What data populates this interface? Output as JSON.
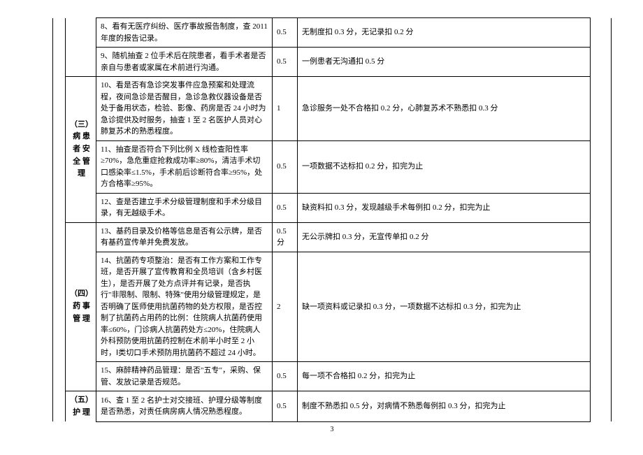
{
  "sections": {
    "s3": "（三）\n病 患\n者 安\n全 管\n理",
    "s4": "（四）\n药 事\n管 理",
    "s5": "（五）\n护 理"
  },
  "rows": [
    {
      "no": 8,
      "content": "8、看有无医疗纠纷、医疗事故报告制度，查 2011 年度的报告记录。",
      "score": "0.5",
      "criteria": "无制度扣 0.3 分，无记录扣 0.2 分"
    },
    {
      "no": 9,
      "content": "9、随机抽查 2 位手术后在院患者，看手术者是否亲自与患者或家属在术前进行沟通。",
      "score": "0.5",
      "criteria": "一例患者无沟通扣 0.5 分"
    },
    {
      "no": 10,
      "content": "10、看是否有急诊突发事件应急预案和处理流程，夜间急诊是否醒目，急诊急救仪器设备是否处于备用状态，检验、影像、药房是否 24 小时为急诊提供及时服务，抽查 1 至 2 名医护人员对心肺复苏术的熟悉程度。",
      "score": "1",
      "criteria": "急诊服务一处不合格扣 0.2 分，心肺复苏术不熟悉扣 0.3 分"
    },
    {
      "no": 11,
      "content": "11、抽查是否符合下列比例 X 线检查阳性率≥70%，急危重症抢救成功率≥80%，清洁手术切口感染率≤1.5%，手术前后诊断符合率≥95%，处方合格率≥95%。",
      "score": "0.5",
      "criteria": "一项数据不达标扣 0.2 分，扣完为止"
    },
    {
      "no": 12,
      "content": "12、查是否建立手术分级管理制度和手术分级目录，有无越级手术。",
      "score": "0.5",
      "criteria": "缺资料扣 0.3 分，发现越级手术每例扣 0.2 分，扣完为止"
    },
    {
      "no": 13,
      "content": "13、基药目录及价格等信息是否有公示牌，是否有基药宣传单并免费发放。",
      "score": "0.5\n分",
      "criteria": "无公示牌扣 0.3 分，无宣传单扣 0.2 分"
    },
    {
      "no": 14,
      "content": "14、抗菌药专项整治：是否有工作方案和工作专班，是否开展了宣传教育和全员培训（含乡村医生），是否开展了处方点评并有记录，是否执行\"非限制、限制、特殊\"使用分级管理规定，是否明确了医师使用抗菌药物的处方权限，是否控制了抗菌药占用药的比例：住院病人抗菌药使用率≤60%，门诊病人抗菌药处方≤20%，住院病人外科预防使用抗菌药控制在术前半小时至 2 小时，Ⅰ类切口手术预防用抗菌药不超过 24 小时。",
      "score": "2",
      "criteria": "缺一项资料或记录扣 0.3 分，一项数据不达标扣 0.3 分，扣完为止"
    },
    {
      "no": 15,
      "content": "15、麻醉精神药品管理：是否\"五专\"，采购、保管、发放记录是否规范。",
      "score": "0.5",
      "criteria": "每一项不合格扣 0.2 分，扣完为止"
    },
    {
      "no": 16,
      "content": "16、查 1 至 2 名护士对交接班、护理分级等制度是否熟悉，对责任病房病人情况熟悉程度。",
      "score": "0.5",
      "criteria": "制度不熟悉扣 0.5 分，对病情不熟悉每例扣 0.3 分，扣完为止"
    }
  ],
  "pageNumber": "3"
}
